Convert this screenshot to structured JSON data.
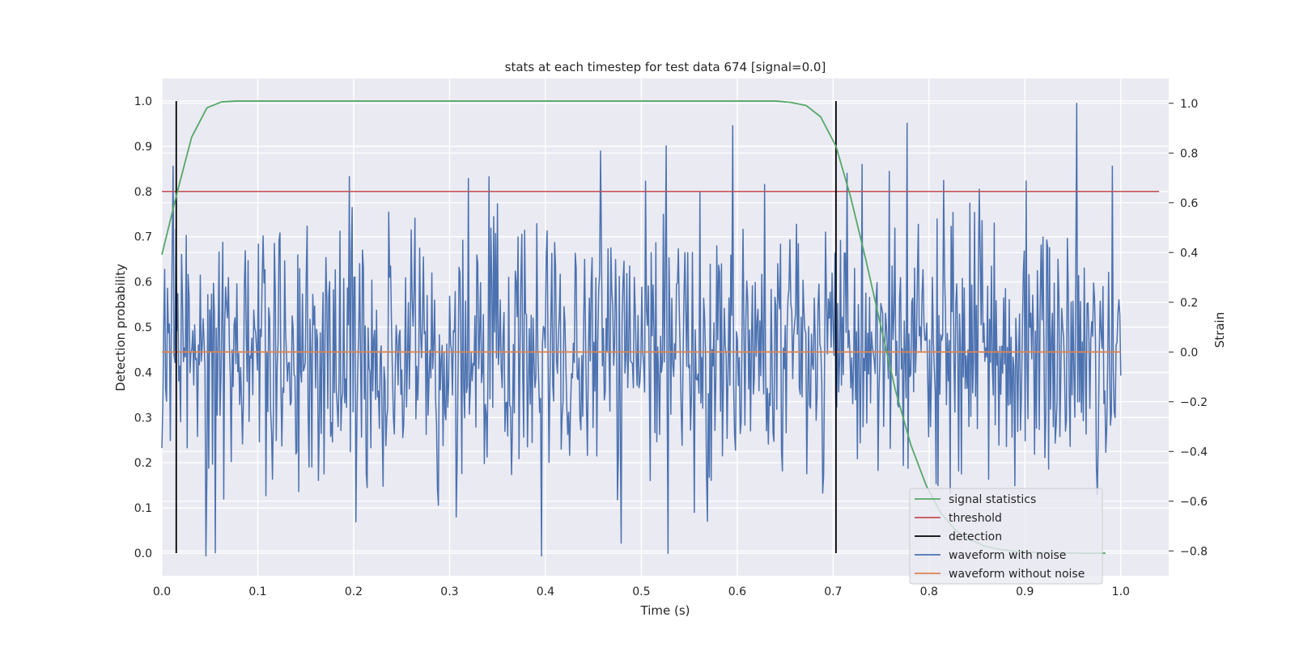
{
  "chart_data": {
    "type": "line",
    "title": "stats at each timestep for test data 674 [signal=0.0]",
    "xlabel": "Time (s)",
    "ylabel": "Detection probability",
    "y2label": "Strain",
    "xlim": [
      0.0,
      1.05
    ],
    "ylim": [
      -0.05,
      1.05
    ],
    "y2lim": [
      -0.9,
      1.1
    ],
    "xticks": [
      0.0,
      0.1,
      0.2,
      0.3,
      0.4,
      0.5,
      0.6,
      0.7,
      0.8,
      0.9,
      1.0
    ],
    "xtick_labels": [
      "0.0",
      "0.1",
      "0.2",
      "0.3",
      "0.4",
      "0.5",
      "0.6",
      "0.7",
      "0.8",
      "0.9",
      "1.0"
    ],
    "yticks": [
      0.0,
      0.1,
      0.2,
      0.3,
      0.4,
      0.5,
      0.6,
      0.7,
      0.8,
      0.9,
      1.0
    ],
    "ytick_labels": [
      "0.0",
      "0.1",
      "0.2",
      "0.3",
      "0.4",
      "0.5",
      "0.6",
      "0.7",
      "0.8",
      "0.9",
      "1.0"
    ],
    "y2ticks": [
      -0.8,
      -0.6,
      -0.4,
      -0.2,
      0.0,
      0.2,
      0.4,
      0.6,
      0.8,
      1.0
    ],
    "y2tick_labels": [
      "−0.8",
      "−0.6",
      "−0.4",
      "−0.2",
      "0.0",
      "0.2",
      "0.4",
      "0.6",
      "0.8",
      "1.0"
    ],
    "grid": true,
    "legend_position": "bottom-right",
    "series": [
      {
        "name": "signal statistics",
        "color": "#55a868",
        "axis": "left",
        "x": [
          0.0,
          0.015,
          0.031,
          0.047,
          0.062,
          0.078,
          0.1,
          0.2,
          0.3,
          0.4,
          0.5,
          0.6,
          0.64,
          0.656,
          0.672,
          0.687,
          0.703,
          0.718,
          0.734,
          0.75,
          0.765,
          0.781,
          0.797,
          0.812,
          0.828,
          0.843,
          0.859,
          0.875,
          0.89,
          0.906,
          0.922,
          0.937,
          0.953,
          0.968,
          0.984
        ],
        "y": [
          0.66,
          0.79,
          0.92,
          0.985,
          0.998,
          1.0,
          1.0,
          1.0,
          1.0,
          1.0,
          1.0,
          1.0,
          1.0,
          0.997,
          0.99,
          0.965,
          0.9,
          0.79,
          0.65,
          0.5,
          0.36,
          0.24,
          0.15,
          0.09,
          0.05,
          0.03,
          0.015,
          0.008,
          0.004,
          0.002,
          0.001,
          0.001,
          0.0,
          0.0,
          0.0
        ]
      },
      {
        "name": "threshold",
        "color": "#c44e52",
        "axis": "left",
        "x": [
          0.0,
          1.04
        ],
        "y": [
          0.8,
          0.8
        ]
      },
      {
        "name": "detection",
        "color": "#000000",
        "axis": "left",
        "type": "vlines",
        "x": [
          0.015,
          0.703
        ],
        "ymin": 0.0,
        "ymax": 1.0
      },
      {
        "name": "waveform with noise",
        "color": "#4c72b0",
        "axis": "right",
        "x_range": [
          0.0,
          1.0
        ],
        "summary": "dense noise around 0.0 strain, about -0.82 to 1.0",
        "peaks": [
          {
            "x": 0.954,
            "y": 1.0
          },
          {
            "x": 0.777,
            "y": 0.92
          },
          {
            "x": 0.595,
            "y": 0.91
          },
          {
            "x": 0.046,
            "y": -0.82
          },
          {
            "x": 0.396,
            "y": -0.82
          }
        ]
      },
      {
        "name": "waveform without noise",
        "color": "#dd8452",
        "axis": "right",
        "x": [
          0.0,
          1.0
        ],
        "y": [
          0.0,
          0.0
        ]
      }
    ]
  }
}
